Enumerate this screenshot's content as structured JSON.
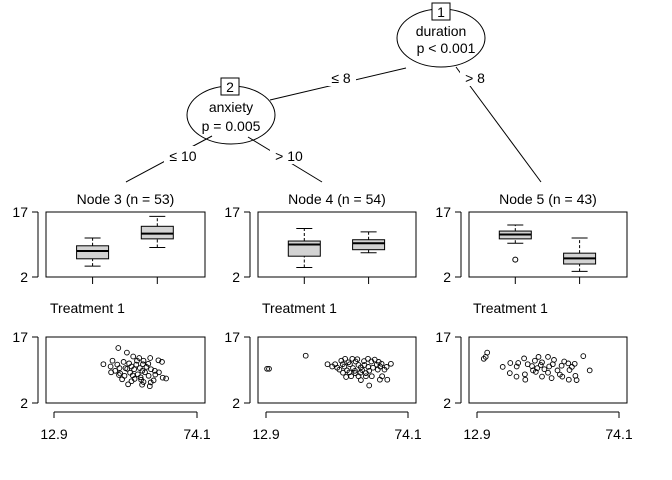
{
  "inner_nodes": [
    {
      "id": "1",
      "variable": "duration",
      "p_value": "p < 0.001"
    },
    {
      "id": "2",
      "variable": "anxiety",
      "p_value": "p = 0.005"
    }
  ],
  "edges": [
    {
      "from": "1",
      "to": "2",
      "label": "≤ 8"
    },
    {
      "from": "1",
      "to": "5",
      "label": "> 8"
    },
    {
      "from": "2",
      "to": "3",
      "label": "≤ 10"
    },
    {
      "from": "2",
      "to": "4",
      "label": "> 10"
    }
  ],
  "chart_data": [
    {
      "type": "boxplot",
      "node": "3",
      "title": "Node 3 (n = 53)",
      "yticks": [
        "17",
        "2"
      ],
      "ylim": [
        2,
        17
      ],
      "xlabel": "Treatment 1",
      "boxes": [
        {
          "whisker_low": 4.5,
          "q1": 6.2,
          "median": 8.0,
          "q3": 9.2,
          "whisker_high": 11.0
        },
        {
          "whisker_low": 8.8,
          "q1": 10.8,
          "median": 12.0,
          "q3": 13.7,
          "whisker_high": 16.0
        }
      ]
    },
    {
      "type": "boxplot",
      "node": "4",
      "title": "Node 4 (n = 54)",
      "yticks": [
        "17",
        "2"
      ],
      "ylim": [
        2,
        17
      ],
      "xlabel": "Treatment 1",
      "boxes": [
        {
          "whisker_low": 4.2,
          "q1": 6.8,
          "median": 9.5,
          "q3": 10.3,
          "whisker_high": 13.2
        },
        {
          "whisker_low": 7.6,
          "q1": 8.3,
          "median": 9.8,
          "q3": 10.6,
          "whisker_high": 12.4
        }
      ]
    },
    {
      "type": "boxplot",
      "node": "5",
      "title": "Node 5 (n = 43)",
      "yticks": [
        "17",
        "2"
      ],
      "ylim": [
        2,
        17
      ],
      "xlabel": "Treatment 1",
      "boxes": [
        {
          "whisker_low": 9.8,
          "q1": 10.8,
          "median": 11.8,
          "q3": 12.6,
          "whisker_high": 14.0,
          "outliers": [
            6.0
          ]
        },
        {
          "whisker_low": 3.3,
          "q1": 5.0,
          "median": 6.3,
          "q3": 7.5,
          "whisker_high": 11.0
        }
      ]
    },
    {
      "type": "scatter",
      "node": "3",
      "yticks": [
        "17",
        "2"
      ],
      "xticks": [
        "12.9",
        "74.1"
      ],
      "xlim": [
        12.9,
        74.1
      ],
      "ylim": [
        2,
        17
      ],
      "points": [
        [
          40.5,
          15.2
        ],
        [
          44.1,
          14.0
        ],
        [
          46.7,
          13.0
        ],
        [
          49.2,
          12.6
        ],
        [
          53.8,
          12.6
        ],
        [
          38.1,
          11.9
        ],
        [
          42.7,
          11.6
        ],
        [
          48.3,
          11.9
        ],
        [
          51.0,
          11.9
        ],
        [
          57.2,
          12.0
        ],
        [
          58.7,
          11.6
        ],
        [
          34.3,
          11.0
        ],
        [
          40.1,
          10.9
        ],
        [
          45.0,
          11.2
        ],
        [
          48.0,
          10.9
        ],
        [
          50.8,
          11.0
        ],
        [
          53.0,
          11.1
        ],
        [
          37.3,
          10.4
        ],
        [
          41.0,
          10.0
        ],
        [
          43.5,
          10.0
        ],
        [
          46.0,
          10.4
        ],
        [
          49.5,
          10.0
        ],
        [
          52.2,
          10.3
        ],
        [
          39.2,
          9.3
        ],
        [
          44.2,
          9.8
        ],
        [
          47.1,
          9.7
        ],
        [
          50.5,
          9.3
        ],
        [
          54.1,
          9.7
        ],
        [
          55.7,
          9.3
        ],
        [
          37.5,
          8.9
        ],
        [
          41.3,
          8.6
        ],
        [
          45.4,
          8.8
        ],
        [
          48.6,
          8.4
        ],
        [
          51.6,
          8.9
        ],
        [
          55.9,
          8.3
        ],
        [
          57.4,
          8.9
        ],
        [
          40.8,
          8.2
        ],
        [
          43.1,
          8.0
        ],
        [
          46.5,
          8.1
        ],
        [
          49.8,
          7.6
        ],
        [
          53.1,
          8.0
        ],
        [
          59.0,
          7.5
        ],
        [
          42.1,
          7.1
        ],
        [
          47.3,
          7.2
        ],
        [
          50.0,
          7.0
        ],
        [
          55.2,
          6.8
        ],
        [
          60.4,
          7.3
        ],
        [
          46.0,
          6.6
        ],
        [
          51.0,
          6.4
        ],
        [
          54.0,
          6.3
        ],
        [
          44.6,
          5.8
        ],
        [
          50.4,
          5.7
        ],
        [
          53.6,
          5.3
        ]
      ]
    },
    {
      "type": "scatter",
      "node": "4",
      "yticks": [
        "17",
        "2"
      ],
      "xticks": [
        "12.9",
        "74.1"
      ],
      "xlim": [
        12.9,
        74.1
      ],
      "ylim": [
        2,
        17
      ],
      "points": [
        [
          30.4,
          13.2
        ],
        [
          46.9,
          12.4
        ],
        [
          49.9,
          12.4
        ],
        [
          52.0,
          12.3
        ],
        [
          56.5,
          12.4
        ],
        [
          59.3,
          12.2
        ],
        [
          45.3,
          11.9
        ],
        [
          48.3,
          11.5
        ],
        [
          51.3,
          11.7
        ],
        [
          54.8,
          11.8
        ],
        [
          57.9,
          11.7
        ],
        [
          61.0,
          11.6
        ],
        [
          39.5,
          11.0
        ],
        [
          42.7,
          11.0
        ],
        [
          45.9,
          11.0
        ],
        [
          48.9,
          11.0
        ],
        [
          52.5,
          10.8
        ],
        [
          55.0,
          10.8
        ],
        [
          60.2,
          10.9
        ],
        [
          62.2,
          11.1
        ],
        [
          66.1,
          11.1
        ],
        [
          41.5,
          10.4
        ],
        [
          43.6,
          10.1
        ],
        [
          46.6,
          10.4
        ],
        [
          50.2,
          10.0
        ],
        [
          53.5,
          10.2
        ],
        [
          56.6,
          10.3
        ],
        [
          58.6,
          10.1
        ],
        [
          61.6,
          10.4
        ],
        [
          64.3,
          10.3
        ],
        [
          14.2,
          9.8
        ],
        [
          15.0,
          9.8
        ],
        [
          44.5,
          9.6
        ],
        [
          47.7,
          9.4
        ],
        [
          51.0,
          9.3
        ],
        [
          54.0,
          9.5
        ],
        [
          57.0,
          9.3
        ],
        [
          60.6,
          9.6
        ],
        [
          63.4,
          9.6
        ],
        [
          46.0,
          8.8
        ],
        [
          48.7,
          8.9
        ],
        [
          51.2,
          8.7
        ],
        [
          53.3,
          8.8
        ],
        [
          55.6,
          8.7
        ],
        [
          49.4,
          7.9
        ],
        [
          52.5,
          7.9
        ],
        [
          55.6,
          7.9
        ],
        [
          58.1,
          7.9
        ],
        [
          62.4,
          7.9
        ],
        [
          47.3,
          7.7
        ],
        [
          61.5,
          7.0
        ],
        [
          64.6,
          7.0
        ],
        [
          53.5,
          6.9
        ],
        [
          57.0,
          5.5
        ]
      ]
    },
    {
      "type": "scatter",
      "node": "5",
      "yticks": [
        "17",
        "2"
      ],
      "xticks": [
        "12.9",
        "74.1"
      ],
      "xlim": [
        12.9,
        74.1
      ],
      "ylim": [
        2,
        17
      ],
      "points": [
        [
          18.0,
          14.0
        ],
        [
          17.4,
          12.9
        ],
        [
          16.6,
          12.4
        ],
        [
          39.5,
          12.9
        ],
        [
          43.5,
          12.9
        ],
        [
          33.5,
          12.5
        ],
        [
          38.0,
          11.9
        ],
        [
          41.0,
          11.5
        ],
        [
          46.0,
          12.1
        ],
        [
          50.3,
          11.7
        ],
        [
          58.3,
          13.1
        ],
        [
          27.7,
          11.3
        ],
        [
          31.0,
          11.3
        ],
        [
          35.0,
          11.0
        ],
        [
          40.5,
          10.8
        ],
        [
          45.5,
          11.0
        ],
        [
          52.0,
          11.2
        ],
        [
          54.7,
          11.1
        ],
        [
          24.5,
          10.3
        ],
        [
          30.4,
          10.4
        ],
        [
          36.8,
          10.5
        ],
        [
          39.0,
          10.0
        ],
        [
          44.0,
          10.4
        ],
        [
          49.2,
          10.6
        ],
        [
          53.5,
          10.3
        ],
        [
          37.2,
          9.4
        ],
        [
          42.0,
          9.7
        ],
        [
          47.5,
          9.4
        ],
        [
          52.5,
          9.5
        ],
        [
          61.0,
          9.4
        ],
        [
          27.5,
          8.7
        ],
        [
          33.8,
          8.4
        ],
        [
          38.4,
          9.0
        ],
        [
          43.5,
          8.8
        ],
        [
          48.5,
          8.3
        ],
        [
          30.3,
          7.8
        ],
        [
          41.0,
          7.8
        ],
        [
          49.5,
          7.8
        ],
        [
          55.0,
          8.0
        ],
        [
          34.0,
          7.0
        ],
        [
          45.0,
          7.4
        ],
        [
          52.2,
          7.0
        ],
        [
          55.5,
          6.9
        ]
      ]
    }
  ]
}
